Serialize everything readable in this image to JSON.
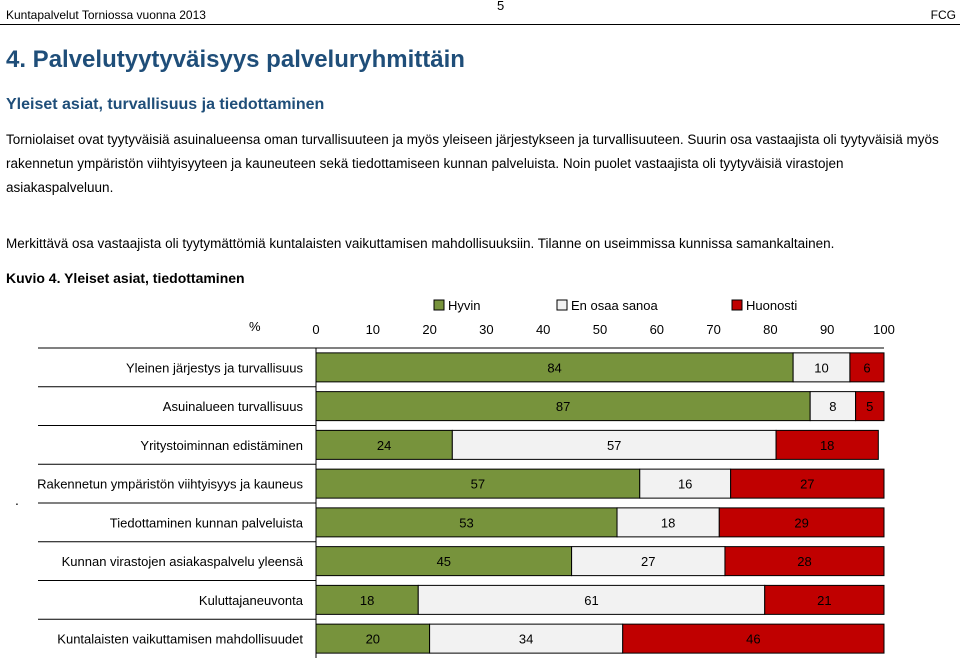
{
  "header": {
    "left": "Kuntapalvelut Torniossa vuonna 2013",
    "page_number": "5",
    "right": "FCG"
  },
  "title": "4. Palvelutyytyväisyys palveluryhmittäin",
  "subtitle": "Yleiset asiat, turvallisuus ja tiedottaminen",
  "paragraph1": "Torniolaiset ovat tyytyväisiä asuinalueensa oman turvallisuuteen ja myös yleiseen järjestykseen ja turvallisuuteen. Suurin osa vastaajista oli tyytyväisiä myös rakennetun ympäristön viihtyisyyteen ja kauneuteen sekä tiedottamiseen kunnan palveluista. Noin puolet vastaajista oli tyytyväisiä virastojen asiakaspalveluun.",
  "paragraph2": "Merkittävä osa vastaajista oli tyytymättömiä kuntalaisten vaikuttamisen mahdollisuuksiin. Tilanne on useimmissa kunnissa samankaltainen.",
  "figure_caption": "Kuvio 4. Yleiset asiat, tiedottaminen",
  "stray_mark": ".",
  "chart_data": {
    "type": "bar",
    "stacked": true,
    "orientation": "horizontal",
    "axis_unit": "%",
    "xlim": [
      0,
      100
    ],
    "ticks": [
      "0",
      "10",
      "20",
      "30",
      "40",
      "50",
      "60",
      "70",
      "80",
      "90",
      "100"
    ],
    "legend_position": "top",
    "categories": [
      "Yleinen järjestys ja turvallisuus",
      "Asuinalueen turvallisuus",
      "Yritystoiminnan edistäminen",
      "Rakennetun ympäristön viihtyisyys ja kauneus",
      "Tiedottaminen kunnan palveluista",
      "Kunnan virastojen asiakaspalvelu yleensä",
      "Kuluttajaneuvonta",
      "Kuntalaisten vaikuttamisen mahdollisuudet"
    ],
    "series": [
      {
        "name": "Hyvin",
        "color": "#77933c",
        "values": [
          84,
          87,
          24,
          57,
          53,
          45,
          18,
          20
        ]
      },
      {
        "name": "En osaa sanoa",
        "color": "#f2f2f2",
        "values": [
          10,
          8,
          57,
          16,
          18,
          27,
          61,
          34
        ]
      },
      {
        "name": "Huonosti",
        "color": "#c00000",
        "values": [
          6,
          5,
          18,
          27,
          29,
          28,
          21,
          46
        ]
      }
    ]
  }
}
